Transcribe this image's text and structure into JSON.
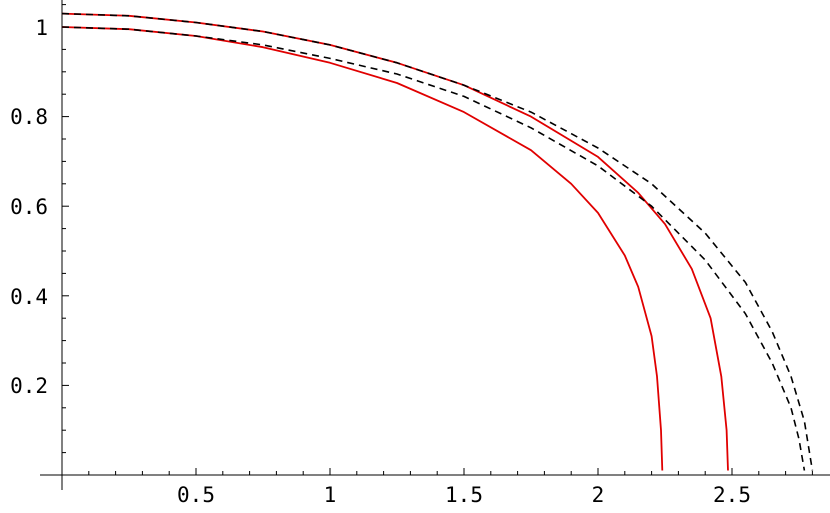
{
  "chart_data": {
    "type": "line",
    "title": "",
    "xlabel": "",
    "ylabel": "",
    "xlim": [
      0,
      2.85
    ],
    "ylim": [
      0,
      1.04
    ],
    "x_ticks": [
      0.5,
      1,
      1.5,
      2,
      2.5
    ],
    "x_tick_labels": [
      "0.5",
      "1",
      "1.5",
      "2",
      "2.5"
    ],
    "y_ticks": [
      0.2,
      0.4,
      0.6,
      0.8,
      1
    ],
    "y_tick_labels": [
      "0.2",
      "0.4",
      "0.6",
      "0.8",
      "1"
    ],
    "x_minor_step": 0.1,
    "y_minor_step": 0.05,
    "grid": false,
    "series": [
      {
        "style": "solid",
        "color": "#e00000",
        "points": [
          [
            0,
            1.0
          ],
          [
            0.25,
            0.995
          ],
          [
            0.5,
            0.98
          ],
          [
            0.75,
            0.955
          ],
          [
            1.0,
            0.92
          ],
          [
            1.25,
            0.875
          ],
          [
            1.5,
            0.81
          ],
          [
            1.75,
            0.725
          ],
          [
            1.9,
            0.65
          ],
          [
            2.0,
            0.585
          ],
          [
            2.1,
            0.49
          ],
          [
            2.15,
            0.42
          ],
          [
            2.2,
            0.31
          ],
          [
            2.22,
            0.22
          ],
          [
            2.235,
            0.1
          ],
          [
            2.24,
            0.01
          ]
        ]
      },
      {
        "style": "solid",
        "color": "#e00000",
        "points": [
          [
            0,
            1.03
          ],
          [
            0.25,
            1.025
          ],
          [
            0.5,
            1.01
          ],
          [
            0.75,
            0.99
          ],
          [
            1.0,
            0.96
          ],
          [
            1.25,
            0.92
          ],
          [
            1.5,
            0.87
          ],
          [
            1.75,
            0.8
          ],
          [
            2.0,
            0.71
          ],
          [
            2.15,
            0.63
          ],
          [
            2.25,
            0.56
          ],
          [
            2.35,
            0.46
          ],
          [
            2.42,
            0.35
          ],
          [
            2.46,
            0.22
          ],
          [
            2.48,
            0.1
          ],
          [
            2.485,
            0.01
          ]
        ]
      },
      {
        "style": "dashed",
        "color": "#000000",
        "points": [
          [
            0,
            1.0
          ],
          [
            0.25,
            0.995
          ],
          [
            0.5,
            0.98
          ],
          [
            0.75,
            0.96
          ],
          [
            1.0,
            0.93
          ],
          [
            1.25,
            0.895
          ],
          [
            1.5,
            0.845
          ],
          [
            1.75,
            0.775
          ],
          [
            2.0,
            0.69
          ],
          [
            2.2,
            0.6
          ],
          [
            2.4,
            0.48
          ],
          [
            2.55,
            0.36
          ],
          [
            2.65,
            0.25
          ],
          [
            2.72,
            0.15
          ],
          [
            2.75,
            0.08
          ],
          [
            2.77,
            0.01
          ]
        ]
      },
      {
        "style": "dashed",
        "color": "#000000",
        "points": [
          [
            0,
            1.03
          ],
          [
            0.25,
            1.025
          ],
          [
            0.5,
            1.01
          ],
          [
            0.75,
            0.99
          ],
          [
            1.0,
            0.96
          ],
          [
            1.25,
            0.92
          ],
          [
            1.5,
            0.87
          ],
          [
            1.75,
            0.81
          ],
          [
            2.0,
            0.73
          ],
          [
            2.2,
            0.65
          ],
          [
            2.4,
            0.54
          ],
          [
            2.55,
            0.43
          ],
          [
            2.65,
            0.32
          ],
          [
            2.72,
            0.22
          ],
          [
            2.77,
            0.12
          ],
          [
            2.8,
            0.01
          ]
        ]
      }
    ]
  }
}
